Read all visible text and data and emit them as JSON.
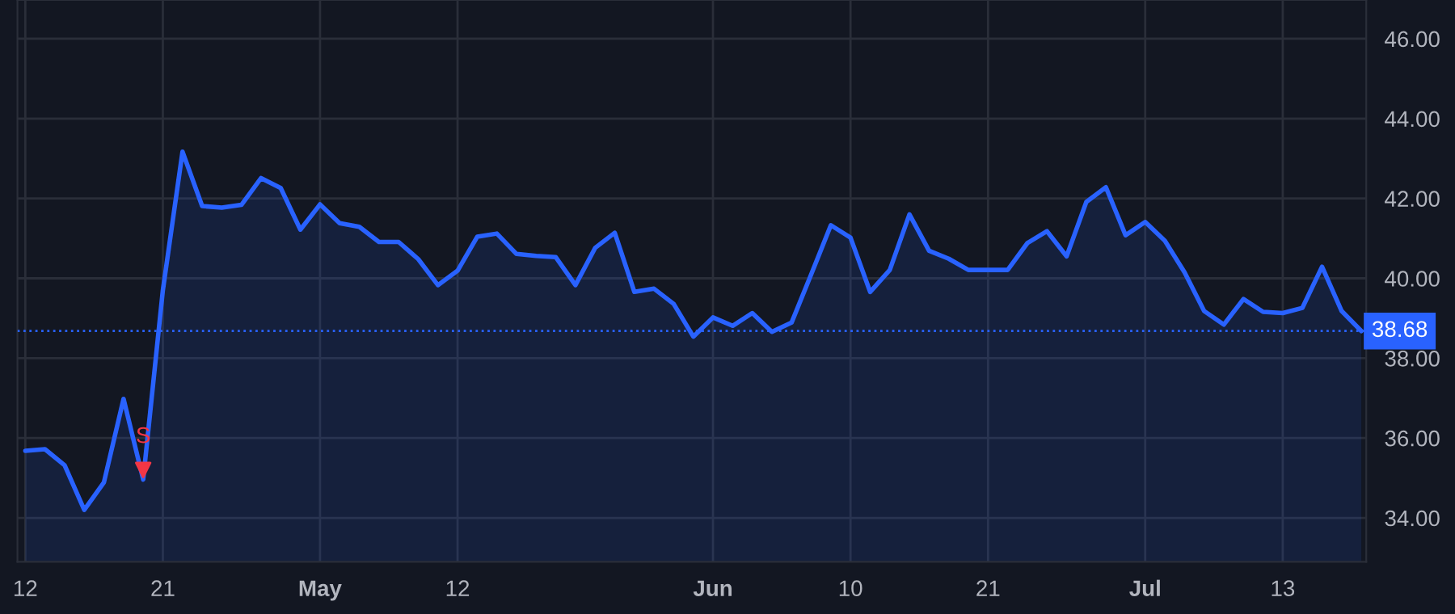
{
  "chart_data": {
    "type": "area",
    "categories": [
      "12",
      null,
      null,
      null,
      null,
      null,
      null,
      "21",
      null,
      null,
      null,
      null,
      null,
      null,
      null,
      "May",
      null,
      null,
      null,
      null,
      null,
      null,
      "12",
      null,
      null,
      null,
      null,
      null,
      null,
      null,
      null,
      null,
      null,
      null,
      null,
      "Jun",
      null,
      null,
      null,
      null,
      null,
      null,
      "10",
      null,
      null,
      null,
      null,
      null,
      null,
      "21",
      null,
      null,
      null,
      null,
      null,
      null,
      null,
      "Jul",
      null,
      null,
      null,
      null,
      null,
      null,
      "13",
      null,
      null,
      null,
      null
    ],
    "series": [
      {
        "color": "#2962ff",
        "values": [
          35.68,
          35.72,
          35.32,
          34.2,
          34.89,
          36.98,
          34.96,
          39.7,
          43.17,
          41.81,
          41.77,
          41.84,
          42.51,
          42.26,
          41.22,
          41.85,
          41.38,
          41.29,
          40.91,
          40.91,
          40.48,
          39.83,
          40.19,
          41.04,
          41.12,
          40.61,
          40.56,
          40.53,
          39.83,
          40.76,
          41.14,
          39.66,
          39.74,
          39.36,
          38.54,
          39.02,
          38.81,
          39.13,
          38.66,
          38.89,
          40.1,
          41.33,
          41.02,
          39.66,
          40.21,
          41.6,
          40.69,
          40.49,
          40.21,
          40.21,
          40.21,
          40.88,
          41.18,
          40.55,
          41.91,
          42.28,
          41.08,
          41.41,
          40.94,
          40.15,
          39.18,
          38.84,
          39.48,
          39.16,
          39.13,
          39.26,
          40.29,
          39.18,
          38.68
        ]
      },
      {
        "type": "scatter",
        "name": "S",
        "color": "#f23645",
        "marker": "triangle",
        "values": [
          null,
          null,
          null,
          null,
          null,
          null,
          35.2,
          null,
          null,
          null,
          null,
          null,
          null,
          null,
          null,
          null,
          null,
          null,
          null,
          null,
          null,
          null,
          null,
          null,
          null,
          null,
          null,
          null,
          null,
          null,
          null,
          null,
          null,
          null,
          null,
          null,
          null,
          null,
          null,
          null,
          null,
          null,
          null,
          null,
          null,
          null,
          null,
          null,
          null,
          null,
          null,
          null,
          null,
          null,
          null,
          null,
          null,
          null,
          null,
          null,
          null,
          null,
          null,
          null,
          null,
          null,
          null,
          null,
          null
        ]
      }
    ],
    "ylim": [
      32.9,
      46.97
    ],
    "yticks": [
      {
        "value": 34,
        "label": "34.00"
      },
      {
        "value": 36,
        "label": "36.00"
      },
      {
        "value": 38,
        "label": "38.00"
      },
      {
        "value": 40,
        "label": "40.00"
      },
      {
        "value": 42,
        "label": "42.00"
      },
      {
        "value": 44,
        "label": "44.00"
      },
      {
        "value": 46,
        "label": "46.00"
      }
    ],
    "ref_lines": [
      {
        "axis": "y",
        "value": 38.68,
        "label": "38.68",
        "color": "#2962ff",
        "line_style": "dotted"
      }
    ],
    "grid": true,
    "legend": false
  }
}
